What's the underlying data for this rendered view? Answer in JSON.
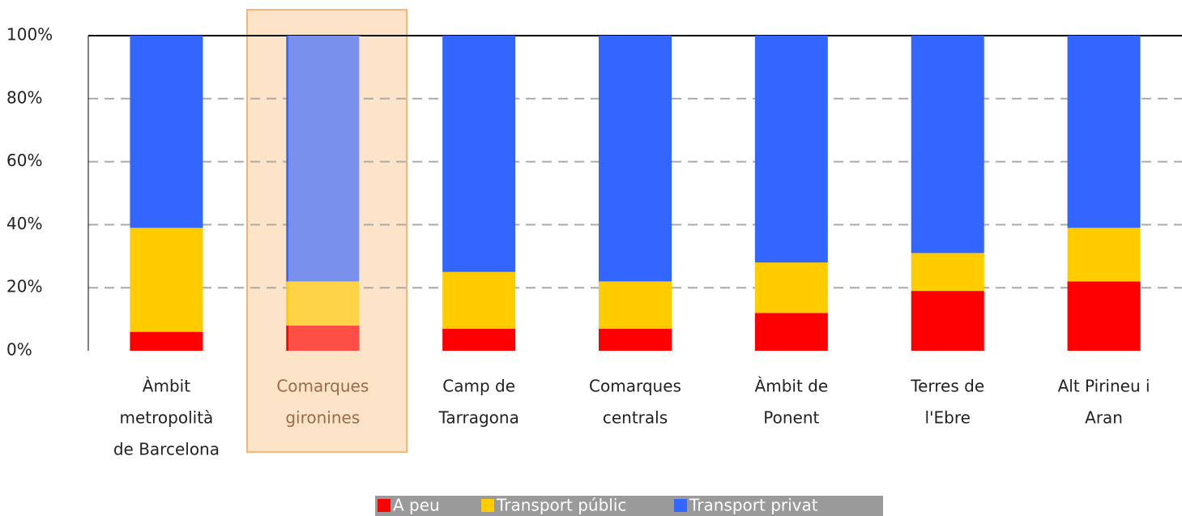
{
  "chart_data": {
    "type": "stacked_bar",
    "categories": [
      [
        "Àmbit",
        "metropolità",
        "de Barcelona"
      ],
      [
        "Comarques",
        "gironines"
      ],
      [
        "Camp de",
        "Tarragona"
      ],
      [
        "Comarques",
        "centrals"
      ],
      [
        "Àmbit de",
        "Ponent"
      ],
      [
        "Terres de",
        "l'Ebre"
      ],
      [
        "Alt Pirineu i",
        "Aran"
      ]
    ],
    "series": [
      {
        "name": "A peu",
        "color": "#ff0000",
        "values": [
          6,
          8,
          7,
          7,
          12,
          19,
          22
        ]
      },
      {
        "name": "Transport públic",
        "color": "#ffcc00",
        "values": [
          33,
          14,
          18,
          15,
          16,
          12,
          17
        ]
      },
      {
        "name": "Transport privat",
        "color": "#3366ff",
        "values": [
          61,
          78,
          75,
          78,
          72,
          69,
          61
        ]
      }
    ],
    "ylim": [
      0,
      100
    ],
    "yticks": [
      {
        "value": 0,
        "label": "0%"
      },
      {
        "value": 20,
        "label": "20%"
      },
      {
        "value": 40,
        "label": "40%"
      },
      {
        "value": 60,
        "label": "60%"
      },
      {
        "value": 80,
        "label": "80%"
      },
      {
        "value": 100,
        "label": "100%"
      }
    ],
    "grid": true,
    "legend": "bottom"
  }
}
